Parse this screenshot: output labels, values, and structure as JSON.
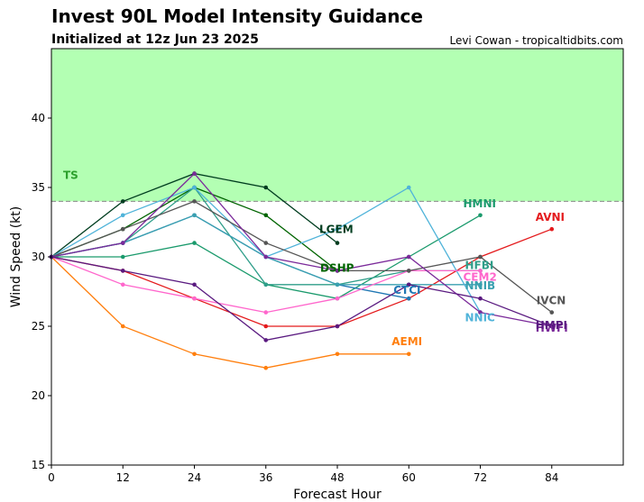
{
  "title": "Invest 90L Model Intensity Guidance",
  "subtitle": "Initialized at 12z Jun 23 2025",
  "credit": "Levi Cowan - tropicaltidbits.com",
  "chart_data": {
    "type": "line",
    "xlabel": "Forecast Hour",
    "ylabel": "Wind Speed (kt)",
    "xlim": [
      0,
      96
    ],
    "ylim": [
      15,
      45
    ],
    "xticks": [
      0,
      12,
      24,
      36,
      48,
      60,
      72,
      84
    ],
    "yticks": [
      15,
      20,
      25,
      30,
      35,
      40
    ],
    "threshold": {
      "label": "TS",
      "value": 34,
      "color": "#2ca02c",
      "fill": "#b3ffb3"
    },
    "series": [
      {
        "name": "AVNI",
        "color": "#e41a1c",
        "x": [
          0,
          12,
          24,
          36,
          48,
          60,
          72,
          84
        ],
        "y": [
          30,
          29,
          27,
          25,
          25,
          27,
          30,
          32
        ]
      },
      {
        "name": "AEMI",
        "color": "#ff7f0e",
        "x": [
          0,
          12,
          24,
          36,
          48,
          60
        ],
        "y": [
          30,
          25,
          23,
          22,
          23,
          23
        ]
      },
      {
        "name": "HMNI",
        "color": "#1a9a6c",
        "x": [
          0,
          12,
          24,
          36,
          48,
          60,
          72
        ],
        "y": [
          30,
          30,
          31,
          28,
          27,
          30,
          33
        ]
      },
      {
        "name": "LGEM",
        "color": "#003d1f",
        "x": [
          0,
          12,
          24,
          36,
          48
        ],
        "y": [
          30,
          34,
          36,
          35,
          31
        ]
      },
      {
        "name": "DSHP",
        "color": "#006400",
        "x": [
          0,
          12,
          24,
          36,
          48
        ],
        "y": [
          30,
          32,
          35,
          33,
          29
        ]
      },
      {
        "name": "CTCI",
        "color": "#1f77b4",
        "x": [
          0,
          12,
          24,
          36,
          48,
          60
        ],
        "y": [
          30,
          31,
          33,
          30,
          28,
          27
        ]
      },
      {
        "name": "HFBI",
        "color": "#2f9e8a",
        "x": [
          0,
          12,
          24,
          36,
          48,
          60,
          72
        ],
        "y": [
          30,
          31,
          35,
          28,
          28,
          29,
          29
        ]
      },
      {
        "name": "NNIB",
        "color": "#3aa0b0",
        "x": [
          0,
          12,
          24,
          36,
          48,
          60,
          72
        ],
        "y": [
          30,
          31,
          33,
          30,
          28,
          28,
          28
        ]
      },
      {
        "name": "NNIC",
        "color": "#4fb3d9",
        "x": [
          0,
          12,
          24,
          36,
          48,
          60,
          72
        ],
        "y": [
          30,
          33,
          35,
          30,
          32,
          35,
          26
        ]
      },
      {
        "name": "CEM2",
        "color": "#ff66cc",
        "x": [
          0,
          12,
          24,
          36,
          48,
          60,
          72
        ],
        "y": [
          30,
          28,
          27,
          26,
          27,
          29,
          29
        ]
      },
      {
        "name": "IVCN",
        "color": "#555555",
        "x": [
          0,
          12,
          24,
          36,
          48,
          60,
          72,
          84
        ],
        "y": [
          30,
          32,
          34,
          31,
          29,
          29,
          30,
          26
        ]
      },
      {
        "name": "HWFI",
        "color": "#7b2a9a",
        "x": [
          0,
          12,
          24,
          36,
          48,
          60,
          72,
          84
        ],
        "y": [
          30,
          31,
          36,
          30,
          29,
          30,
          26,
          25
        ]
      },
      {
        "name": "HMPI",
        "color": "#5a1a80",
        "x": [
          0,
          12,
          24,
          36,
          48,
          60,
          72,
          84
        ],
        "y": [
          30,
          29,
          28,
          24,
          25,
          28,
          27,
          25
        ]
      }
    ],
    "labels": [
      {
        "text": "AVNI",
        "color": "#e41a1c"
      },
      {
        "text": "AEMI",
        "color": "#ff7f0e"
      },
      {
        "text": "HMNI",
        "color": "#1a9a6c"
      },
      {
        "text": "LGEM",
        "color": "#003d1f"
      },
      {
        "text": "DSHP",
        "color": "#006400"
      },
      {
        "text": "CTCI",
        "color": "#1f77b4"
      },
      {
        "text": "HFBI",
        "color": "#2f9e8a"
      },
      {
        "text": "NNIB",
        "color": "#3aa0b0"
      },
      {
        "text": "NNIC",
        "color": "#4fb3d9"
      },
      {
        "text": "CEM2",
        "color": "#ff66cc"
      },
      {
        "text": "IVCN",
        "color": "#555555"
      },
      {
        "text": "HWFI",
        "color": "#7b2a9a"
      },
      {
        "text": "HMPI",
        "color": "#5a1a80"
      }
    ]
  }
}
